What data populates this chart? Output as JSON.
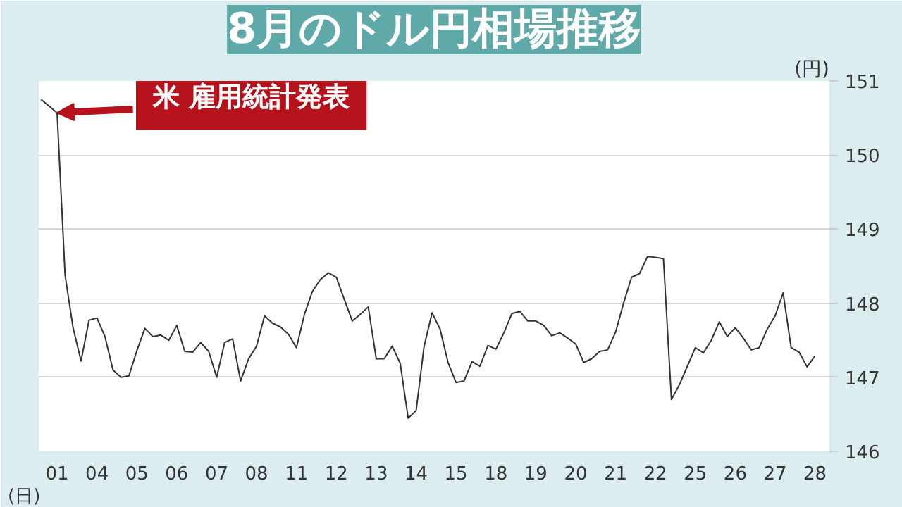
{
  "chart_data": {
    "type": "line",
    "title": "8月のドル円相場推移",
    "xlabel": "(日)",
    "ylabel": "(円)",
    "ylim": [
      146,
      151
    ],
    "yticks": [
      146,
      147,
      148,
      149,
      150,
      151
    ],
    "categories": [
      null,
      null,
      "01",
      null,
      null,
      null,
      null,
      "04",
      null,
      null,
      null,
      null,
      "05",
      null,
      null,
      null,
      null,
      "06",
      null,
      null,
      null,
      null,
      "07",
      null,
      null,
      null,
      null,
      "08",
      null,
      null,
      null,
      null,
      "11",
      null,
      null,
      null,
      null,
      "12",
      null,
      null,
      null,
      null,
      "13",
      null,
      null,
      null,
      null,
      "14",
      null,
      null,
      null,
      null,
      "15",
      null,
      null,
      null,
      null,
      "18",
      null,
      null,
      null,
      null,
      "19",
      null,
      null,
      null,
      null,
      "20",
      null,
      null,
      null,
      null,
      "21",
      null,
      null,
      null,
      null,
      "22",
      null,
      null,
      null,
      null,
      "25",
      null,
      null,
      null,
      null,
      "26",
      null,
      null,
      null,
      null,
      "27",
      null,
      null,
      null,
      null,
      "28"
    ],
    "grid": "y",
    "line_style": "solid",
    "annotations": [
      {
        "text": "米 雇用統計発表",
        "x": "01",
        "y": 150.57
      }
    ],
    "series": [
      {
        "color": "#333333",
        "values": [
          150.75,
          150.66,
          150.57,
          148.38,
          147.67,
          147.22,
          147.77,
          147.8,
          147.55,
          147.1,
          147.0,
          147.02,
          147.36,
          147.66,
          147.55,
          147.57,
          147.5,
          147.7,
          147.35,
          147.34,
          147.47,
          147.35,
          147.0,
          147.47,
          147.52,
          146.95,
          147.25,
          147.42,
          147.83,
          147.73,
          147.68,
          147.58,
          147.4,
          147.85,
          148.16,
          148.32,
          148.41,
          148.35,
          148.05,
          147.76,
          147.85,
          147.95,
          147.25,
          147.25,
          147.42,
          147.19,
          146.45,
          146.55,
          147.42,
          147.87,
          147.65,
          147.2,
          146.93,
          146.95,
          147.21,
          147.15,
          147.43,
          147.38,
          147.6,
          147.86,
          147.89,
          147.76,
          147.76,
          147.7,
          147.56,
          147.6,
          147.53,
          147.45,
          147.2,
          147.25,
          147.35,
          147.37,
          147.61,
          148.0,
          148.35,
          148.4,
          148.63,
          148.62,
          148.6,
          146.7,
          146.9,
          147.15,
          147.4,
          147.33,
          147.5,
          147.75,
          147.55,
          147.67,
          147.53,
          147.37,
          147.4,
          147.65,
          147.83,
          148.14,
          147.4,
          147.34,
          147.14,
          147.29
        ]
      }
    ]
  }
}
